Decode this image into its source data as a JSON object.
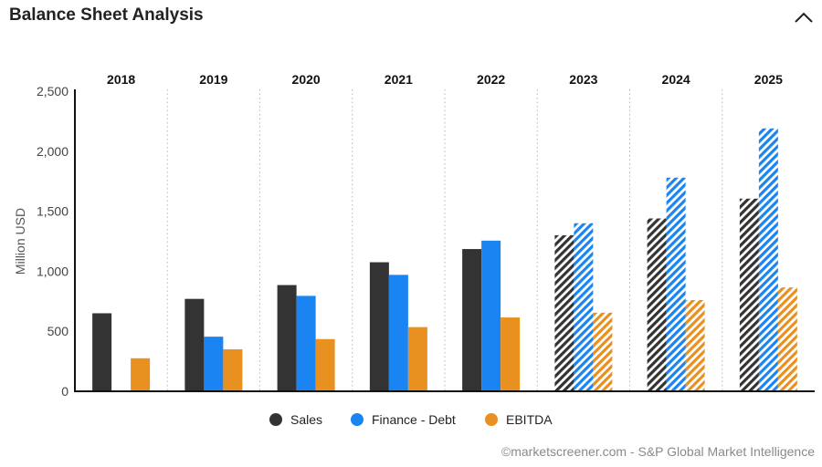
{
  "header": {
    "title": "Balance Sheet Analysis",
    "collapse_icon": "chevron-up-icon"
  },
  "credit": "©marketscreener.com - S&P Global Market Intelligence",
  "colors": {
    "sales": "#333333",
    "debt": "#1a84f2",
    "ebitda": "#e89020"
  },
  "chart_data": {
    "type": "bar",
    "title": "Balance Sheet Analysis",
    "ylabel": "Million USD",
    "xlabel": "",
    "ylim": [
      0,
      2500
    ],
    "yticks": [
      0,
      500,
      1000,
      1500,
      2000,
      2500
    ],
    "ytick_labels": [
      "0",
      "500",
      "1,000",
      "1,500",
      "2,000",
      "2,500"
    ],
    "categories": [
      "2018",
      "2019",
      "2020",
      "2021",
      "2022",
      "2023",
      "2024",
      "2025"
    ],
    "forecast_from": "2023",
    "series": [
      {
        "name": "Sales",
        "key": "sales",
        "values": [
          650,
          770,
          885,
          1075,
          1185,
          1300,
          1440,
          1605
        ]
      },
      {
        "name": "Finance - Debt",
        "key": "debt",
        "values": [
          null,
          455,
          795,
          970,
          1255,
          1400,
          1780,
          2190
        ]
      },
      {
        "name": "EBITDA",
        "key": "ebitda",
        "values": [
          275,
          350,
          435,
          535,
          615,
          655,
          760,
          865
        ]
      }
    ],
    "legend_position": "bottom",
    "grid": "vertical-dotted-separators"
  }
}
